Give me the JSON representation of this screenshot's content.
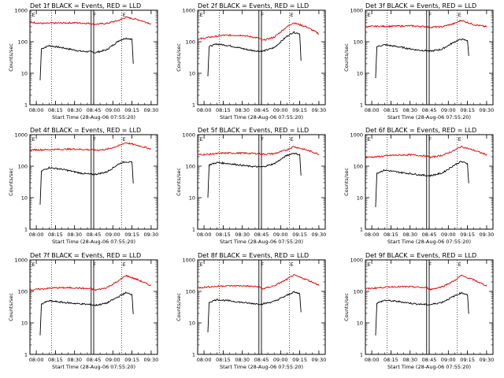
{
  "figure": {
    "panel_titles": [
      "Det 1f BLACK = Events, RED = LLD",
      "Det 2f BLACK = Events, RED = LLD",
      "Det 3f BLACK = Events, RED = LLD",
      "Det 4f BLACK = Events, RED = LLD",
      "Det 5f BLACK = Events, RED = LLD",
      "Det 6f BLACK = Events, RED = LLD",
      "Det 7f BLACK = Events, RED = LLD",
      "Det 8f BLACK = Events, RED = LLD",
      "Det 9f BLACK = Events, RED = LLD"
    ],
    "xlabel": "Start Time (28-Aug-06 07:55:20)",
    "ylabel": "Counts/sec",
    "x_ticks": [
      "08:00",
      "08:15",
      "08:30",
      "08:45",
      "09:00",
      "09:15",
      "09:30"
    ],
    "y_ticks": [
      "1",
      "10",
      "100",
      "1000"
    ],
    "markers": [
      "E",
      "F",
      "E"
    ],
    "colors": {
      "events": "#000000",
      "lld": "#dd0000",
      "frame": "#000000"
    }
  },
  "chart_data": [
    {
      "type": "line",
      "title": "Det 1f BLACK = Events, RED = LLD",
      "xlabel": "Start Time (28-Aug-06 07:55:20)",
      "ylabel": "Counts/sec",
      "y_scale": "log",
      "ylim": [
        1,
        1000
      ],
      "xlim": [
        "07:55",
        "09:35"
      ],
      "series": [
        {
          "name": "Events",
          "color": "#000000",
          "x": [
            "08:03",
            "08:04",
            "08:10",
            "08:20",
            "08:35",
            "08:43",
            "08:46",
            "08:55",
            "09:05",
            "09:10",
            "09:15",
            "09:16"
          ],
          "values": [
            6,
            60,
            75,
            65,
            50,
            48,
            45,
            55,
            110,
            130,
            120,
            20
          ]
        },
        {
          "name": "LLD",
          "color": "#dd0000",
          "x": [
            "07:55",
            "08:05",
            "08:15",
            "08:30",
            "08:43",
            "08:46",
            "08:55",
            "09:05",
            "09:10",
            "09:20",
            "09:30"
          ],
          "values": [
            420,
            380,
            390,
            400,
            380,
            360,
            380,
            480,
            600,
            500,
            370
          ]
        }
      ]
    },
    {
      "type": "line",
      "title": "Det 2f BLACK = Events, RED = LLD",
      "xlabel": "Start Time (28-Aug-06 07:55:20)",
      "ylabel": "Counts/sec",
      "y_scale": "log",
      "ylim": [
        1,
        1000
      ],
      "xlim": [
        "07:55",
        "09:35"
      ],
      "series": [
        {
          "name": "Events",
          "color": "#000000",
          "x": [
            "08:03",
            "08:04",
            "08:10",
            "08:20",
            "08:35",
            "08:43",
            "08:46",
            "08:55",
            "09:05",
            "09:10",
            "09:15",
            "09:16"
          ],
          "values": [
            8,
            70,
            85,
            75,
            55,
            50,
            50,
            65,
            150,
            200,
            180,
            25
          ]
        },
        {
          "name": "LLD",
          "color": "#dd0000",
          "x": [
            "07:55",
            "08:05",
            "08:15",
            "08:30",
            "08:43",
            "08:46",
            "08:55",
            "09:05",
            "09:10",
            "09:20",
            "09:30"
          ],
          "values": [
            120,
            140,
            160,
            160,
            130,
            110,
            140,
            300,
            400,
            300,
            180
          ]
        }
      ]
    },
    {
      "type": "line",
      "title": "Det 3f BLACK = Events, RED = LLD",
      "xlabel": "Start Time (28-Aug-06 07:55:20)",
      "ylabel": "Counts/sec",
      "y_scale": "log",
      "ylim": [
        1,
        1000
      ],
      "xlim": [
        "07:55",
        "09:35"
      ],
      "series": [
        {
          "name": "Events",
          "color": "#000000",
          "x": [
            "08:03",
            "08:04",
            "08:10",
            "08:20",
            "08:35",
            "08:43",
            "08:46",
            "08:55",
            "09:05",
            "09:10",
            "09:15",
            "09:16"
          ],
          "values": [
            7,
            70,
            80,
            70,
            55,
            52,
            50,
            58,
            100,
            120,
            110,
            35
          ]
        },
        {
          "name": "LLD",
          "color": "#dd0000",
          "x": [
            "07:55",
            "08:05",
            "08:15",
            "08:30",
            "08:43",
            "08:46",
            "08:55",
            "09:05",
            "09:10",
            "09:20",
            "09:30"
          ],
          "values": [
            300,
            310,
            310,
            320,
            300,
            290,
            300,
            380,
            480,
            350,
            300
          ]
        }
      ]
    },
    {
      "type": "line",
      "title": "Det 4f BLACK = Events, RED = LLD",
      "xlabel": "Start Time (28-Aug-06 07:55:20)",
      "ylabel": "Counts/sec",
      "y_scale": "log",
      "ylim": [
        1,
        1000
      ],
      "xlim": [
        "07:55",
        "09:35"
      ],
      "series": [
        {
          "name": "Events",
          "color": "#000000",
          "x": [
            "08:03",
            "08:04",
            "08:10",
            "08:20",
            "08:35",
            "08:43",
            "08:46",
            "08:55",
            "09:05",
            "09:10",
            "09:15",
            "09:16"
          ],
          "values": [
            6,
            70,
            90,
            80,
            60,
            55,
            55,
            65,
            120,
            140,
            130,
            30
          ]
        },
        {
          "name": "LLD",
          "color": "#dd0000",
          "x": [
            "07:55",
            "08:05",
            "08:15",
            "08:30",
            "08:43",
            "08:46",
            "08:55",
            "09:05",
            "09:10",
            "09:20",
            "09:30"
          ],
          "values": [
            330,
            330,
            340,
            350,
            330,
            320,
            340,
            450,
            560,
            450,
            350
          ]
        }
      ]
    },
    {
      "type": "line",
      "title": "Det 5f BLACK = Events, RED = LLD",
      "xlabel": "Start Time (28-Aug-06 07:55:20)",
      "ylabel": "Counts/sec",
      "y_scale": "log",
      "ylim": [
        1,
        1000
      ],
      "xlim": [
        "07:55",
        "09:35"
      ],
      "series": [
        {
          "name": "Events",
          "color": "#000000",
          "x": [
            "08:03",
            "08:04",
            "08:10",
            "08:20",
            "08:35",
            "08:43",
            "08:46",
            "08:55",
            "09:05",
            "09:10",
            "09:15",
            "09:16"
          ],
          "values": [
            10,
            110,
            130,
            120,
            100,
            95,
            95,
            120,
            220,
            260,
            230,
            50
          ]
        },
        {
          "name": "LLD",
          "color": "#dd0000",
          "x": [
            "07:55",
            "08:05",
            "08:15",
            "08:30",
            "08:43",
            "08:46",
            "08:55",
            "09:05",
            "09:10",
            "09:20",
            "09:30"
          ],
          "values": [
            230,
            240,
            260,
            260,
            250,
            240,
            250,
            330,
            420,
            330,
            240
          ]
        }
      ]
    },
    {
      "type": "line",
      "title": "Det 6f BLACK = Events, RED = LLD",
      "xlabel": "Start Time (28-Aug-06 07:55:20)",
      "ylabel": "Counts/sec",
      "y_scale": "log",
      "ylim": [
        1,
        1000
      ],
      "xlim": [
        "07:55",
        "09:35"
      ],
      "series": [
        {
          "name": "Events",
          "color": "#000000",
          "x": [
            "08:03",
            "08:04",
            "08:10",
            "08:20",
            "08:35",
            "08:43",
            "08:46",
            "08:55",
            "09:05",
            "09:10",
            "09:15",
            "09:16"
          ],
          "values": [
            5,
            60,
            75,
            65,
            55,
            50,
            50,
            60,
            110,
            140,
            120,
            30
          ]
        },
        {
          "name": "LLD",
          "color": "#dd0000",
          "x": [
            "07:55",
            "08:05",
            "08:15",
            "08:30",
            "08:43",
            "08:46",
            "08:55",
            "09:05",
            "09:10",
            "09:20",
            "09:30"
          ],
          "values": [
            190,
            200,
            220,
            230,
            210,
            190,
            220,
            320,
            420,
            320,
            230
          ]
        }
      ]
    },
    {
      "type": "line",
      "title": "Det 7f BLACK = Events, RED = LLD",
      "xlabel": "Start Time (28-Aug-06 07:55:20)",
      "ylabel": "Counts/sec",
      "y_scale": "log",
      "ylim": [
        1,
        1000
      ],
      "xlim": [
        "07:55",
        "09:35"
      ],
      "series": [
        {
          "name": "Events",
          "color": "#000000",
          "x": [
            "08:03",
            "08:04",
            "08:10",
            "08:20",
            "08:35",
            "08:43",
            "08:46",
            "08:55",
            "09:05",
            "09:10",
            "09:15",
            "09:16"
          ],
          "values": [
            4,
            40,
            50,
            45,
            40,
            38,
            36,
            42,
            70,
            90,
            80,
            20
          ]
        },
        {
          "name": "LLD",
          "color": "#dd0000",
          "x": [
            "07:55",
            "08:05",
            "08:15",
            "08:30",
            "08:43",
            "08:46",
            "08:55",
            "09:05",
            "09:10",
            "09:20",
            "09:30"
          ],
          "values": [
            110,
            120,
            130,
            130,
            120,
            110,
            130,
            220,
            320,
            230,
            150
          ]
        }
      ]
    },
    {
      "type": "line",
      "title": "Det 8f BLACK = Events, RED = LLD",
      "xlabel": "Start Time (28-Aug-06 07:55:20)",
      "ylabel": "Counts/sec",
      "y_scale": "log",
      "ylim": [
        1,
        1000
      ],
      "xlim": [
        "07:55",
        "09:35"
      ],
      "series": [
        {
          "name": "Events",
          "color": "#000000",
          "x": [
            "08:03",
            "08:04",
            "08:10",
            "08:20",
            "08:35",
            "08:43",
            "08:46",
            "08:55",
            "09:05",
            "09:10",
            "09:15",
            "09:16"
          ],
          "values": [
            5,
            45,
            55,
            50,
            42,
            40,
            40,
            48,
            75,
            95,
            85,
            22
          ]
        },
        {
          "name": "LLD",
          "color": "#dd0000",
          "x": [
            "07:55",
            "08:05",
            "08:15",
            "08:30",
            "08:43",
            "08:46",
            "08:55",
            "09:05",
            "09:10",
            "09:20",
            "09:30"
          ],
          "values": [
            130,
            140,
            150,
            150,
            140,
            120,
            150,
            240,
            330,
            240,
            160
          ]
        }
      ]
    },
    {
      "type": "line",
      "title": "Det 9f BLACK = Events, RED = LLD",
      "xlabel": "Start Time (28-Aug-06 07:55:20)",
      "ylabel": "Counts/sec",
      "y_scale": "log",
      "ylim": [
        1,
        1000
      ],
      "xlim": [
        "07:55",
        "09:35"
      ],
      "series": [
        {
          "name": "Events",
          "color": "#000000",
          "x": [
            "08:03",
            "08:04",
            "08:10",
            "08:20",
            "08:35",
            "08:43",
            "08:46",
            "08:55",
            "09:05",
            "09:10",
            "09:15",
            "09:16"
          ],
          "values": [
            4,
            42,
            52,
            48,
            40,
            38,
            38,
            45,
            72,
            90,
            80,
            20
          ]
        },
        {
          "name": "LLD",
          "color": "#dd0000",
          "x": [
            "07:55",
            "08:05",
            "08:15",
            "08:30",
            "08:43",
            "08:46",
            "08:55",
            "09:05",
            "09:10",
            "09:20",
            "09:30"
          ],
          "values": [
            120,
            130,
            140,
            140,
            130,
            115,
            140,
            220,
            320,
            230,
            150
          ]
        }
      ]
    }
  ]
}
